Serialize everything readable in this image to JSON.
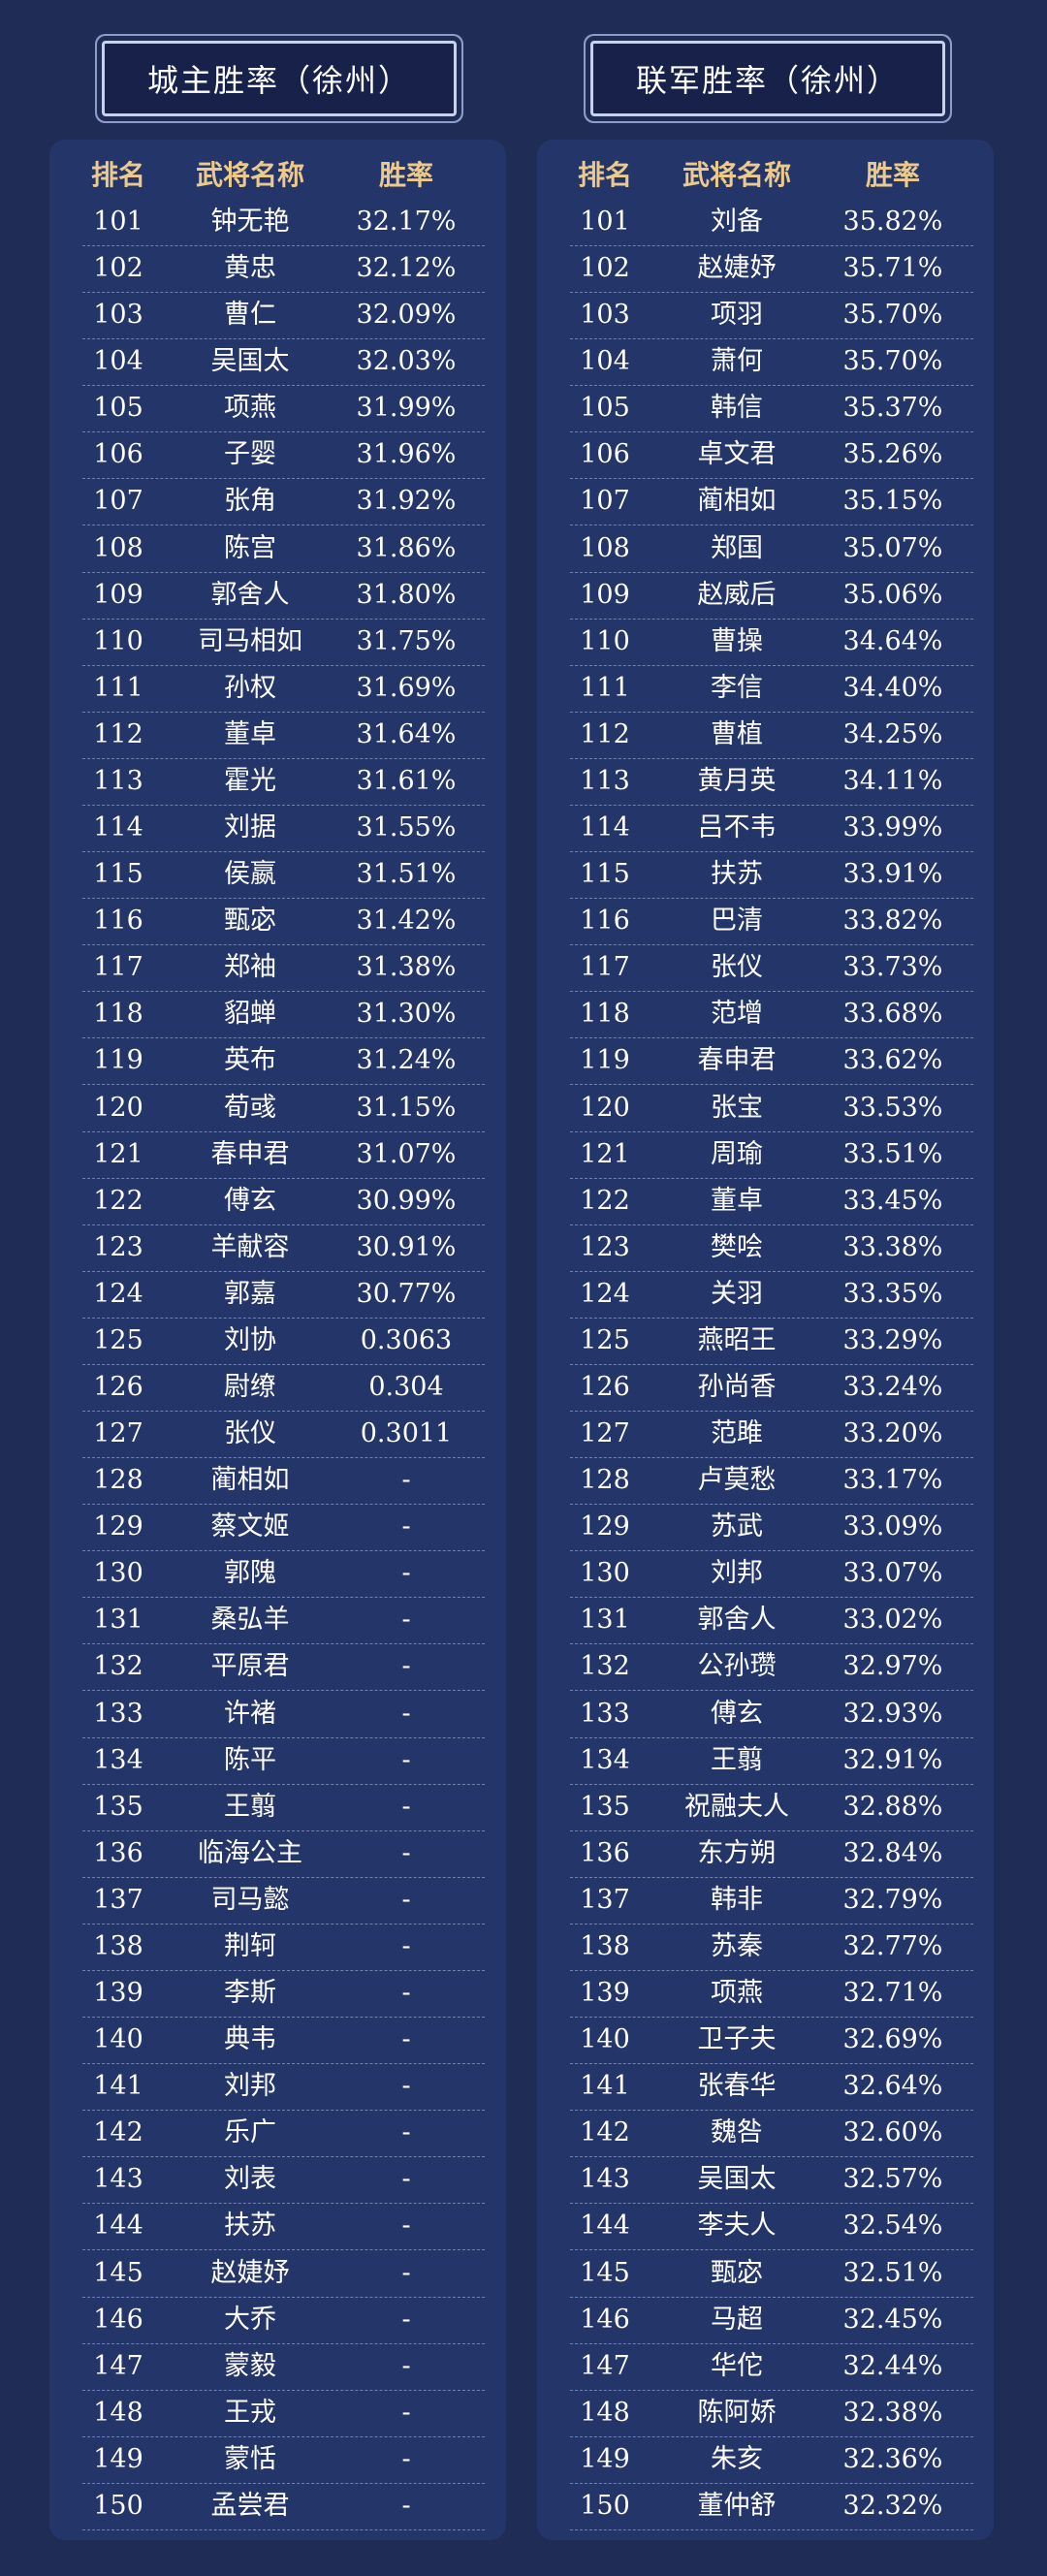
{
  "left": {
    "title": "城主胜率（徐州）",
    "columns": [
      "排名",
      "武将名称",
      "胜率"
    ],
    "rows": [
      [
        "101",
        "钟无艳",
        "32.17%"
      ],
      [
        "102",
        "黄忠",
        "32.12%"
      ],
      [
        "103",
        "曹仁",
        "32.09%"
      ],
      [
        "104",
        "吴国太",
        "32.03%"
      ],
      [
        "105",
        "项燕",
        "31.99%"
      ],
      [
        "106",
        "子婴",
        "31.96%"
      ],
      [
        "107",
        "张角",
        "31.92%"
      ],
      [
        "108",
        "陈宫",
        "31.86%"
      ],
      [
        "109",
        "郭舍人",
        "31.80%"
      ],
      [
        "110",
        "司马相如",
        "31.75%"
      ],
      [
        "111",
        "孙权",
        "31.69%"
      ],
      [
        "112",
        "董卓",
        "31.64%"
      ],
      [
        "113",
        "霍光",
        "31.61%"
      ],
      [
        "114",
        "刘据",
        "31.55%"
      ],
      [
        "115",
        "侯嬴",
        "31.51%"
      ],
      [
        "116",
        "甄宓",
        "31.42%"
      ],
      [
        "117",
        "郑袖",
        "31.38%"
      ],
      [
        "118",
        "貂蝉",
        "31.30%"
      ],
      [
        "119",
        "英布",
        "31.24%"
      ],
      [
        "120",
        "荀彧",
        "31.15%"
      ],
      [
        "121",
        "春申君",
        "31.07%"
      ],
      [
        "122",
        "傅玄",
        "30.99%"
      ],
      [
        "123",
        "羊献容",
        "30.91%"
      ],
      [
        "124",
        "郭嘉",
        "30.77%"
      ],
      [
        "125",
        "刘协",
        "0.3063"
      ],
      [
        "126",
        "尉缭",
        "0.304"
      ],
      [
        "127",
        "张仪",
        "0.3011"
      ],
      [
        "128",
        "蔺相如",
        "-"
      ],
      [
        "129",
        "蔡文姬",
        "-"
      ],
      [
        "130",
        "郭隗",
        "-"
      ],
      [
        "131",
        "桑弘羊",
        "-"
      ],
      [
        "132",
        "平原君",
        "-"
      ],
      [
        "133",
        "许褚",
        "-"
      ],
      [
        "134",
        "陈平",
        "-"
      ],
      [
        "135",
        "王翦",
        "-"
      ],
      [
        "136",
        "临海公主",
        "-"
      ],
      [
        "137",
        "司马懿",
        "-"
      ],
      [
        "138",
        "荆轲",
        "-"
      ],
      [
        "139",
        "李斯",
        "-"
      ],
      [
        "140",
        "典韦",
        "-"
      ],
      [
        "141",
        "刘邦",
        "-"
      ],
      [
        "142",
        "乐广",
        "-"
      ],
      [
        "143",
        "刘表",
        "-"
      ],
      [
        "144",
        "扶苏",
        "-"
      ],
      [
        "145",
        "赵婕妤",
        "-"
      ],
      [
        "146",
        "大乔",
        "-"
      ],
      [
        "147",
        "蒙毅",
        "-"
      ],
      [
        "148",
        "王戎",
        "-"
      ],
      [
        "149",
        "蒙恬",
        "-"
      ],
      [
        "150",
        "孟尝君",
        "-"
      ]
    ]
  },
  "right": {
    "title": "联军胜率（徐州）",
    "columns": [
      "排名",
      "武将名称",
      "胜率"
    ],
    "rows": [
      [
        "101",
        "刘备",
        "35.82%"
      ],
      [
        "102",
        "赵婕妤",
        "35.71%"
      ],
      [
        "103",
        "项羽",
        "35.70%"
      ],
      [
        "104",
        "萧何",
        "35.70%"
      ],
      [
        "105",
        "韩信",
        "35.37%"
      ],
      [
        "106",
        "卓文君",
        "35.26%"
      ],
      [
        "107",
        "蔺相如",
        "35.15%"
      ],
      [
        "108",
        "郑国",
        "35.07%"
      ],
      [
        "109",
        "赵威后",
        "35.06%"
      ],
      [
        "110",
        "曹操",
        "34.64%"
      ],
      [
        "111",
        "李信",
        "34.40%"
      ],
      [
        "112",
        "曹植",
        "34.25%"
      ],
      [
        "113",
        "黄月英",
        "34.11%"
      ],
      [
        "114",
        "吕不韦",
        "33.99%"
      ],
      [
        "115",
        "扶苏",
        "33.91%"
      ],
      [
        "116",
        "巴清",
        "33.82%"
      ],
      [
        "117",
        "张仪",
        "33.73%"
      ],
      [
        "118",
        "范增",
        "33.68%"
      ],
      [
        "119",
        "春申君",
        "33.62%"
      ],
      [
        "120",
        "张宝",
        "33.53%"
      ],
      [
        "121",
        "周瑜",
        "33.51%"
      ],
      [
        "122",
        "董卓",
        "33.45%"
      ],
      [
        "123",
        "樊哙",
        "33.38%"
      ],
      [
        "124",
        "关羽",
        "33.35%"
      ],
      [
        "125",
        "燕昭王",
        "33.29%"
      ],
      [
        "126",
        "孙尚香",
        "33.24%"
      ],
      [
        "127",
        "范雎",
        "33.20%"
      ],
      [
        "128",
        "卢莫愁",
        "33.17%"
      ],
      [
        "129",
        "苏武",
        "33.09%"
      ],
      [
        "130",
        "刘邦",
        "33.07%"
      ],
      [
        "131",
        "郭舍人",
        "33.02%"
      ],
      [
        "132",
        "公孙瓒",
        "32.97%"
      ],
      [
        "133",
        "傅玄",
        "32.93%"
      ],
      [
        "134",
        "王翦",
        "32.91%"
      ],
      [
        "135",
        "祝融夫人",
        "32.88%"
      ],
      [
        "136",
        "东方朔",
        "32.84%"
      ],
      [
        "137",
        "韩非",
        "32.79%"
      ],
      [
        "138",
        "苏秦",
        "32.77%"
      ],
      [
        "139",
        "项燕",
        "32.71%"
      ],
      [
        "140",
        "卫子夫",
        "32.69%"
      ],
      [
        "141",
        "张春华",
        "32.64%"
      ],
      [
        "142",
        "魏咎",
        "32.60%"
      ],
      [
        "143",
        "吴国太",
        "32.57%"
      ],
      [
        "144",
        "李夫人",
        "32.54%"
      ],
      [
        "145",
        "甄宓",
        "32.51%"
      ],
      [
        "146",
        "马超",
        "32.45%"
      ],
      [
        "147",
        "华佗",
        "32.44%"
      ],
      [
        "148",
        "陈阿娇",
        "32.38%"
      ],
      [
        "149",
        "朱亥",
        "32.36%"
      ],
      [
        "150",
        "董仲舒",
        "32.32%"
      ]
    ]
  }
}
